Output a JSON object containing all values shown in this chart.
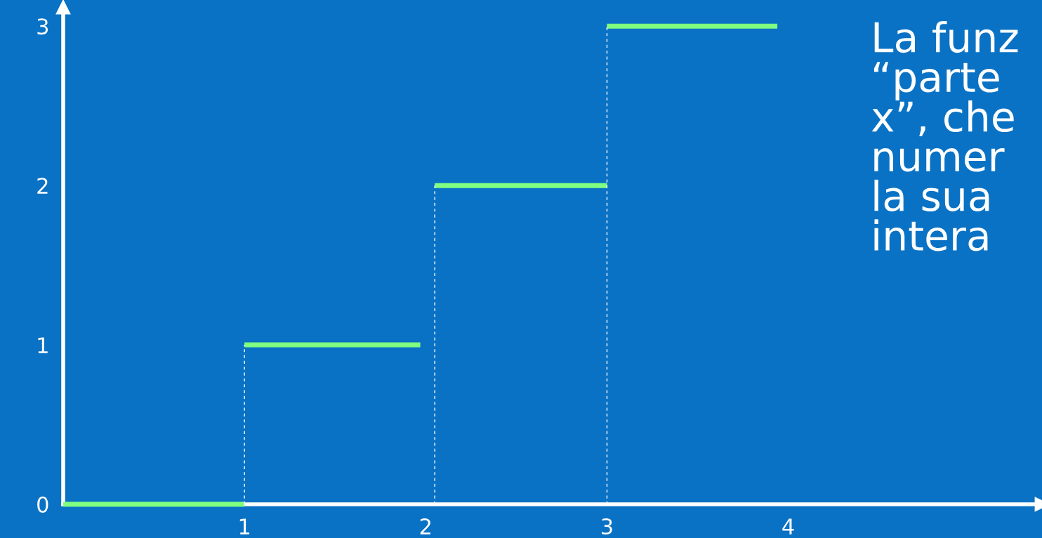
{
  "chart_data": {
    "type": "line",
    "annotations": [
      "La funz\n“parte\nx”, che\nnumer\nla sua\nintera"
    ],
    "series": [
      {
        "color": "#80ff80",
        "x": [
          0,
          1
        ],
        "values": [
          0,
          0
        ]
      },
      {
        "color": "#80ff80",
        "x": [
          1,
          1.97
        ],
        "values": [
          1,
          1
        ]
      },
      {
        "color": "#80ff80",
        "x": [
          2.05,
          3
        ],
        "values": [
          2,
          2
        ]
      },
      {
        "color": "#80ff80",
        "x": [
          3,
          3.94
        ],
        "values": [
          3,
          3
        ]
      },
      {
        "color": "#ffffff",
        "line_style": "dashed",
        "x": [
          1,
          1
        ],
        "values": [
          0,
          1
        ]
      },
      {
        "color": "#ffffff",
        "line_style": "dashed",
        "x": [
          2.05,
          2.05
        ],
        "values": [
          0,
          2
        ]
      },
      {
        "color": "#ffffff",
        "line_style": "dashed",
        "x": [
          3,
          3
        ],
        "values": [
          0,
          3
        ]
      }
    ],
    "xlim": [
      0,
      5.4
    ],
    "xticks": [
      1,
      2,
      3,
      4
    ],
    "ylim": [
      0,
      3.12
    ],
    "yticks": [
      0,
      1,
      2,
      3
    ]
  }
}
